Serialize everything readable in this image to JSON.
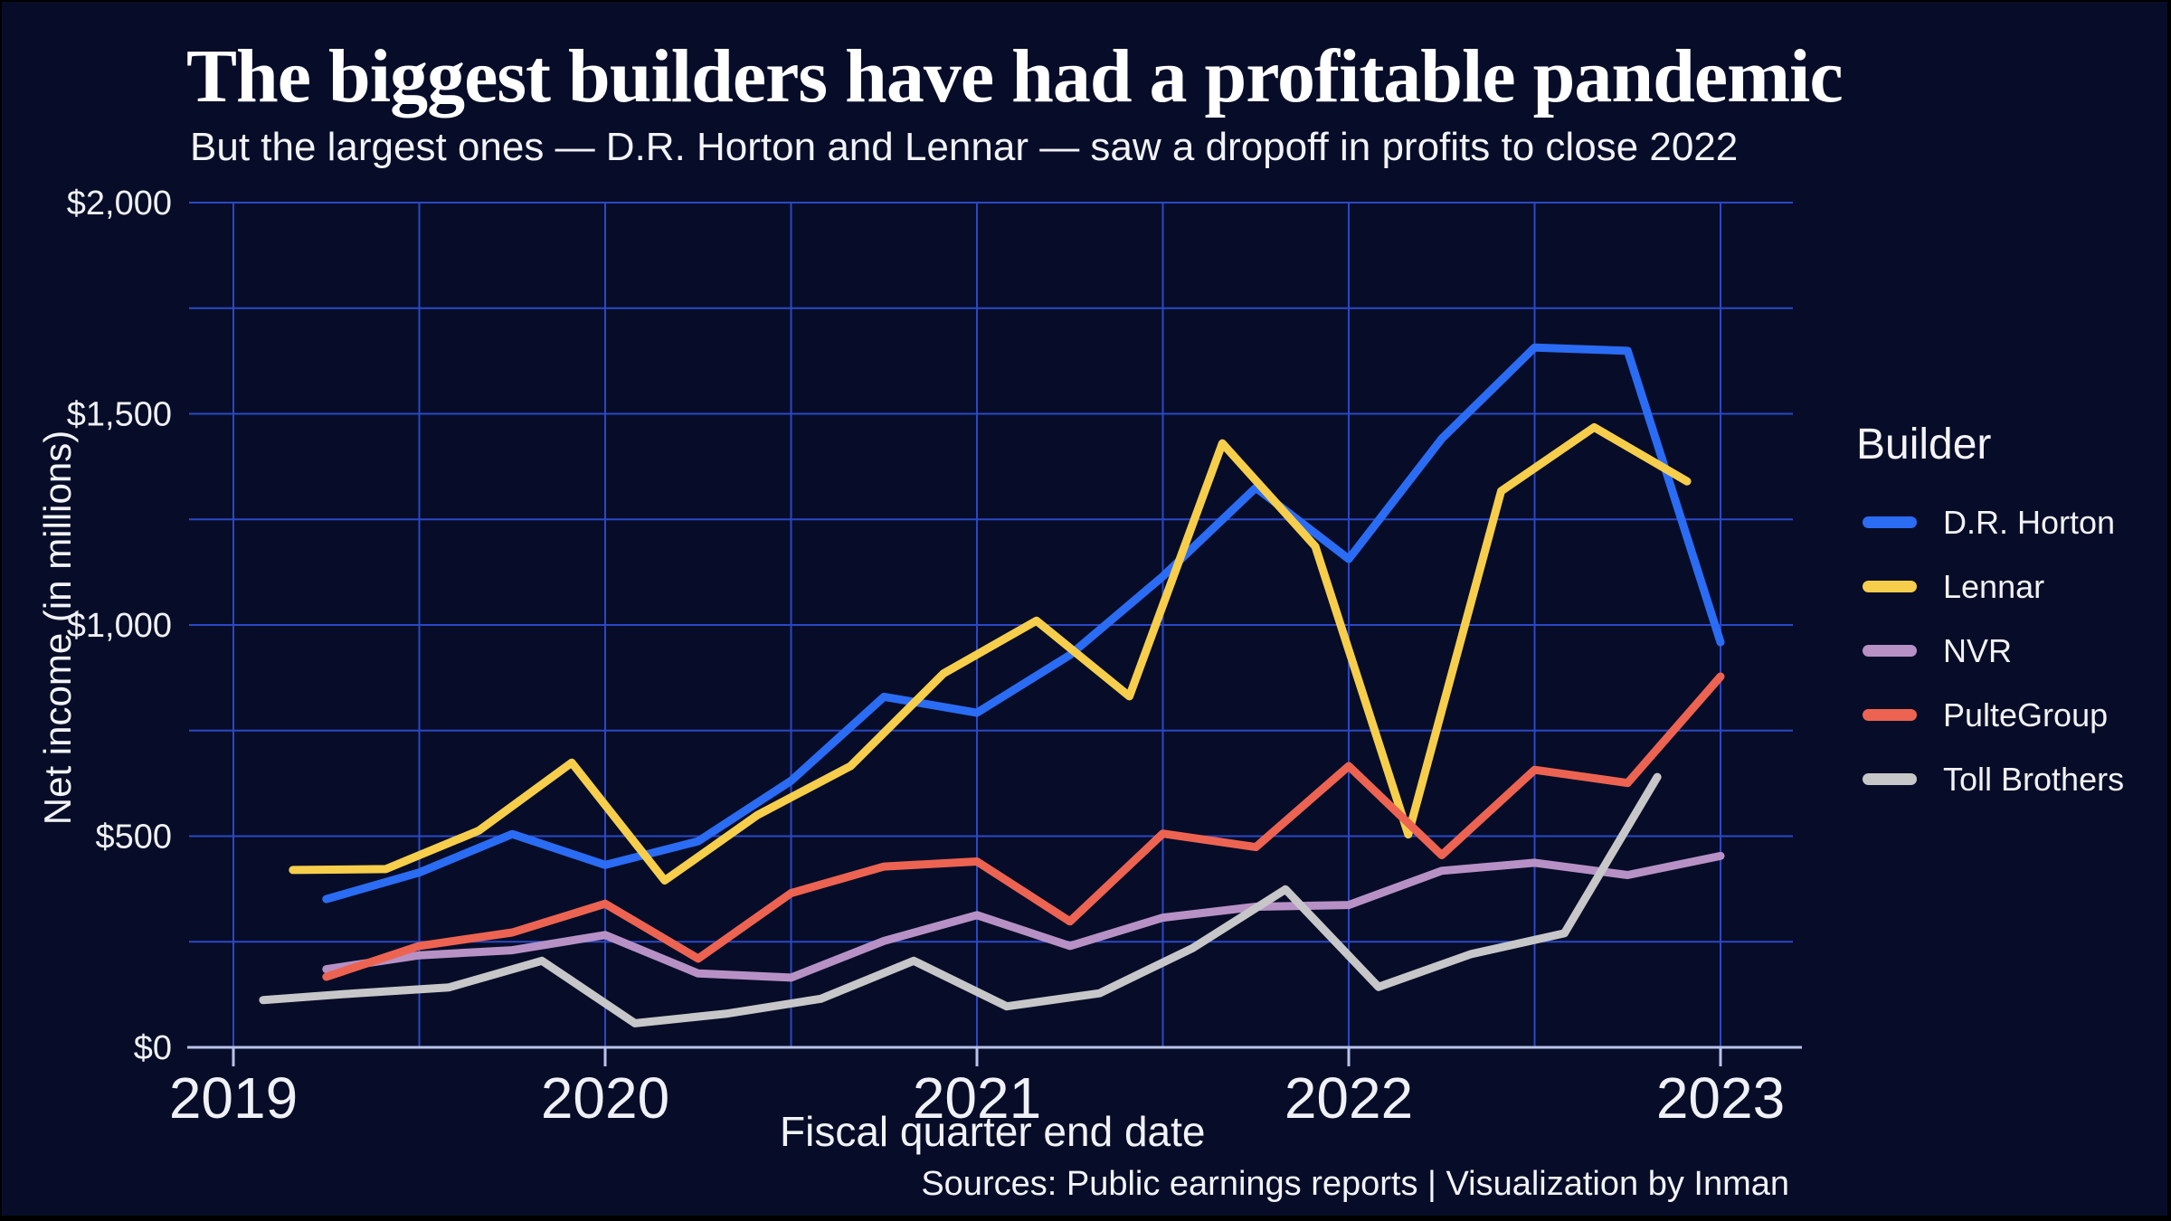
{
  "header": {
    "title": "The biggest builders have had a profitable pandemic",
    "subtitle": "But the largest ones — D.R. Horton and Lennar — saw a dropoff in profits to close 2022"
  },
  "footer": {
    "source": "Sources: Public earnings reports | Visualization by Inman"
  },
  "colors": {
    "background": "#070d28",
    "gridline": "#2a48c6",
    "axis": "#b9c2ea",
    "text": "#f2f3f9",
    "dr_horton": "#2b6cf4",
    "lennar": "#f6ce4b",
    "nvr": "#b791c5",
    "pultegroup": "#ed6352",
    "toll_brothers": "#c7c7c9"
  },
  "chart_data": {
    "type": "line",
    "title": "The biggest builders have had a profitable pandemic",
    "subtitle": "But the largest ones — D.R. Horton and Lennar — saw a dropoff in profits to close 2022",
    "xlabel": "Fiscal quarter end date",
    "ylabel": "Net income (in millions)",
    "xlim": [
      2018.88,
      2023.19
    ],
    "ylim": [
      0,
      2000
    ],
    "x_ticks": [
      2019,
      2020,
      2021,
      2022,
      2023
    ],
    "x_tick_labels": [
      "2019",
      "2020",
      "2021",
      "2022",
      "2023"
    ],
    "y_ticks": [
      0,
      500,
      1000,
      1500,
      2000
    ],
    "y_tick_labels": [
      "$0",
      "$500",
      "$1,000",
      "$1,500",
      "$2,000"
    ],
    "grid": {
      "x_step": 0.5,
      "y_step": 250,
      "on": true
    },
    "legend": {
      "title": "Builder",
      "position": "right"
    },
    "series": [
      {
        "name": "D.R. Horton",
        "color_key": "dr_horton",
        "points": [
          [
            2019.25,
            351
          ],
          [
            2019.5,
            414
          ],
          [
            2019.75,
            505
          ],
          [
            2020.0,
            432
          ],
          [
            2020.25,
            488
          ],
          [
            2020.5,
            631
          ],
          [
            2020.75,
            830
          ],
          [
            2021.0,
            792
          ],
          [
            2021.25,
            929
          ],
          [
            2021.5,
            1115
          ],
          [
            2021.75,
            1325
          ],
          [
            2022.0,
            1156
          ],
          [
            2022.25,
            1441
          ],
          [
            2022.5,
            1657
          ],
          [
            2022.75,
            1649
          ],
          [
            2023.0,
            959
          ]
        ]
      },
      {
        "name": "Lennar",
        "color_key": "lennar",
        "points": [
          [
            2019.16,
            420
          ],
          [
            2019.41,
            422
          ],
          [
            2019.66,
            513
          ],
          [
            2019.91,
            674
          ],
          [
            2020.16,
            395
          ],
          [
            2020.41,
            550
          ],
          [
            2020.66,
            666
          ],
          [
            2020.91,
            885
          ],
          [
            2021.16,
            1010
          ],
          [
            2021.41,
            831
          ],
          [
            2021.66,
            1430
          ],
          [
            2021.91,
            1186
          ],
          [
            2022.16,
            504
          ],
          [
            2022.41,
            1317
          ],
          [
            2022.66,
            1468
          ],
          [
            2022.91,
            1340
          ]
        ]
      },
      {
        "name": "NVR",
        "color_key": "nvr",
        "points": [
          [
            2019.25,
            185
          ],
          [
            2019.5,
            218
          ],
          [
            2019.75,
            230
          ],
          [
            2020.0,
            266
          ],
          [
            2020.25,
            175
          ],
          [
            2020.5,
            165
          ],
          [
            2020.75,
            252
          ],
          [
            2021.0,
            313
          ],
          [
            2021.25,
            240
          ],
          [
            2021.5,
            307
          ],
          [
            2021.75,
            333
          ],
          [
            2022.0,
            337
          ],
          [
            2022.25,
            418
          ],
          [
            2022.5,
            437
          ],
          [
            2022.75,
            408
          ],
          [
            2023.0,
            453
          ]
        ]
      },
      {
        "name": "PulteGroup",
        "color_key": "pultegroup",
        "points": [
          [
            2019.25,
            167
          ],
          [
            2019.5,
            240
          ],
          [
            2019.75,
            272
          ],
          [
            2020.0,
            340
          ],
          [
            2020.25,
            210
          ],
          [
            2020.5,
            365
          ],
          [
            2020.75,
            428
          ],
          [
            2021.0,
            440
          ],
          [
            2021.25,
            298
          ],
          [
            2021.5,
            506
          ],
          [
            2021.75,
            474
          ],
          [
            2022.0,
            666
          ],
          [
            2022.25,
            455
          ],
          [
            2022.5,
            657
          ],
          [
            2022.75,
            626
          ],
          [
            2023.0,
            878
          ]
        ]
      },
      {
        "name": "Toll Brothers",
        "color_key": "toll_brothers",
        "points": [
          [
            2019.08,
            112
          ],
          [
            2019.33,
            128
          ],
          [
            2019.58,
            142
          ],
          [
            2019.83,
            205
          ],
          [
            2020.08,
            57
          ],
          [
            2020.33,
            80
          ],
          [
            2020.58,
            115
          ],
          [
            2020.83,
            205
          ],
          [
            2021.08,
            97
          ],
          [
            2021.33,
            128
          ],
          [
            2021.58,
            235
          ],
          [
            2021.83,
            374
          ],
          [
            2022.08,
            143
          ],
          [
            2022.33,
            221
          ],
          [
            2022.58,
            270
          ],
          [
            2022.83,
            640
          ]
        ]
      }
    ]
  }
}
